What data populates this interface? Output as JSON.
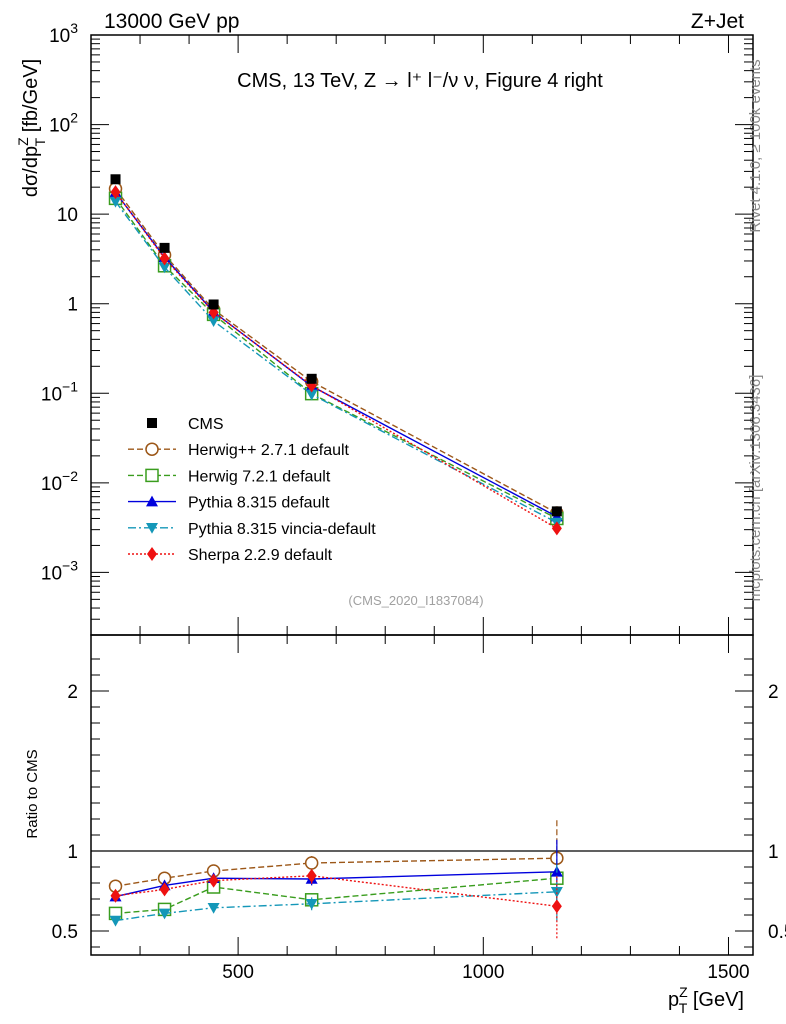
{
  "header": {
    "left": "13000 GeV pp",
    "right": "Z+Jet"
  },
  "side_labels": {
    "rivet": "Rivet 4.1.0, ≥ 100k events",
    "mcplots": "mcplots.cern.ch [arXiv:1306.3436]"
  },
  "chart_data": {
    "type": "line",
    "title": "CMS, 13 TeV, Z →  l⁺ l⁻/ν ν, Figure 4 right",
    "analysis_id": "(CMS_2020_I1837084)",
    "xlabel": "p",
    "xlabel_sup": "Z",
    "xlabel_sub": "T",
    "xlabel_unit": " [GeV]",
    "ylabel_main": "dσ/dp",
    "ylabel_sup": "Z",
    "ylabel_sub": "T",
    "ylabel_unit": " [fb/GeV]",
    "ratio_ylabel": "Ratio to CMS",
    "xlim": [
      200,
      1550
    ],
    "ylim": [
      0.0002,
      1000
    ],
    "ratio_ylim": [
      0.35,
      2.35
    ],
    "x_ticks": [
      500,
      1000,
      1500
    ],
    "x_tick_labels": [
      "500",
      "1000",
      "1500"
    ],
    "y_ticks": [
      {
        "v": 0.001,
        "base": "10",
        "exp": "−3"
      },
      {
        "v": 0.01,
        "base": "10",
        "exp": "−2"
      },
      {
        "v": 0.1,
        "base": "10",
        "exp": "−1"
      },
      {
        "v": 1,
        "base": "1",
        "exp": ""
      },
      {
        "v": 10,
        "base": "10",
        "exp": ""
      },
      {
        "v": 100,
        "base": "10",
        "exp": "2"
      },
      {
        "v": 1000,
        "base": "10",
        "exp": "3"
      }
    ],
    "ratio_ticks": [
      {
        "v": 0.5,
        "label": "0.5"
      },
      {
        "v": 1,
        "label": "1"
      },
      {
        "v": 2,
        "label": "2"
      }
    ],
    "x": [
      250,
      350,
      450,
      650,
      1150
    ],
    "data": {
      "name": "CMS",
      "values": [
        24.5,
        4.2,
        0.98,
        0.145,
        0.0048
      ],
      "color": "#000000"
    },
    "series": [
      {
        "name": "Herwig++ 2.7.1 default",
        "values": [
          19.2,
          3.5,
          0.86,
          0.135,
          0.0046
        ],
        "ratio": [
          0.78,
          0.83,
          0.875,
          0.925,
          0.955
        ],
        "ratio_err": [
          0.015,
          0.02,
          0.03,
          0.05,
          0.25
        ],
        "color": "#9c5718",
        "dash": "6,3",
        "marker": "circle-open"
      },
      {
        "name": "Herwig 7.2.1 default",
        "values": [
          15.0,
          2.65,
          0.76,
          0.099,
          0.004
        ],
        "ratio": [
          0.61,
          0.635,
          0.775,
          0.695,
          0.83
        ],
        "ratio_err": [
          0.015,
          0.02,
          0.03,
          0.04,
          0.2
        ],
        "color": "#3a9d1e",
        "dash": "6,3",
        "marker": "square-open"
      },
      {
        "name": "Pythia 8.315 default",
        "values": [
          17.5,
          3.3,
          0.81,
          0.12,
          0.0042
        ],
        "ratio": [
          0.715,
          0.785,
          0.83,
          0.825,
          0.87
        ],
        "ratio_err": [
          0.015,
          0.02,
          0.03,
          0.04,
          0.2
        ],
        "color": "#0000dd",
        "dash": "",
        "marker": "triangle-up"
      },
      {
        "name": "Pythia 8.315 vincia-default",
        "values": [
          13.8,
          2.55,
          0.64,
          0.097,
          0.0036
        ],
        "ratio": [
          0.565,
          0.61,
          0.645,
          0.67,
          0.745
        ],
        "ratio_err": [
          0.015,
          0.02,
          0.03,
          0.04,
          0.18
        ],
        "color": "#1497b8",
        "dash": "8,3,2,3",
        "marker": "triangle-down"
      },
      {
        "name": "Sherpa 2.2.9 default",
        "values": [
          17.6,
          3.2,
          0.8,
          0.122,
          0.0031
        ],
        "ratio": [
          0.72,
          0.76,
          0.815,
          0.845,
          0.655
        ],
        "ratio_err": [
          0.015,
          0.02,
          0.03,
          0.05,
          0.2
        ],
        "color": "#ee1111",
        "dash": "2,2",
        "marker": "diamond"
      }
    ]
  }
}
